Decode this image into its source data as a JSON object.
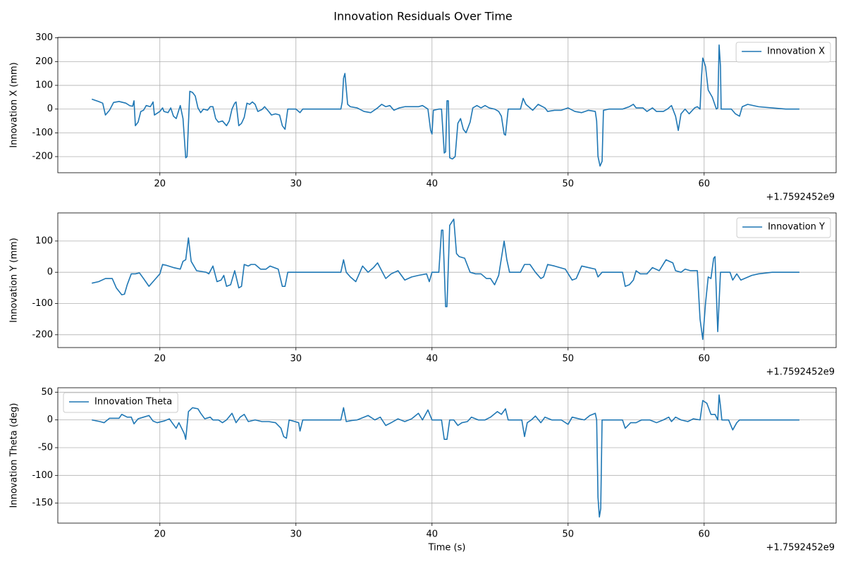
{
  "title": "Innovation Residuals Over Time",
  "chart_data": [
    {
      "type": "line",
      "ylabel": "Innovation X (mm)",
      "x_offset_label": "+1.7592452e9",
      "grid": true,
      "legend": "upper right",
      "xlim": [
        12.5,
        69.7
      ],
      "xticks": [
        20,
        30,
        40,
        50,
        60
      ],
      "ylim": [
        -268,
        302
      ],
      "yticks": [
        -200,
        -100,
        0,
        100,
        200,
        300
      ],
      "x": [
        15.0,
        15.5,
        15.8,
        16.0,
        16.3,
        16.6,
        17.0,
        17.5,
        17.8,
        18.0,
        18.1,
        18.2,
        18.4,
        18.6,
        18.8,
        19.0,
        19.3,
        19.5,
        19.6,
        20.0,
        20.2,
        20.3,
        20.6,
        20.8,
        21.0,
        21.2,
        21.5,
        21.7,
        21.9,
        22.0,
        22.2,
        22.4,
        22.6,
        22.8,
        23.0,
        23.2,
        23.5,
        23.7,
        23.9,
        24.1,
        24.3,
        24.6,
        24.9,
        25.1,
        25.3,
        25.5,
        25.6,
        25.8,
        26.0,
        26.2,
        26.4,
        26.6,
        26.8,
        27.0,
        27.2,
        27.5,
        27.7,
        28.0,
        28.2,
        28.5,
        28.8,
        29.0,
        29.2,
        29.4,
        29.7,
        30.0,
        30.3,
        30.5,
        31,
        32,
        33.3,
        33.4,
        33.5,
        33.6,
        33.8,
        34.0,
        34.5,
        35,
        35.5,
        36,
        36.3,
        36.6,
        36.9,
        37.2,
        37.6,
        38,
        38.5,
        39,
        39.3,
        39.7,
        39.9,
        40.0,
        40.1,
        40.5,
        40.7,
        40.9,
        41.0,
        41.1,
        41.2,
        41.3,
        41.5,
        41.7,
        41.9,
        42.1,
        42.3,
        42.5,
        42.8,
        43.0,
        43.3,
        43.6,
        43.9,
        44.2,
        44.6,
        44.9,
        45.1,
        45.3,
        45.4,
        45.6,
        46.2,
        46.5,
        46.7,
        46.9,
        47.1,
        47.4,
        47.8,
        48.3,
        48.5,
        49,
        49.5,
        50,
        50.5,
        51,
        51.5,
        52.0,
        52.1,
        52.2,
        52.35,
        52.5,
        52.6,
        53,
        54,
        54.5,
        54.8,
        55.0,
        55.5,
        55.8,
        56.2,
        56.5,
        57,
        57.3,
        57.6,
        57.9,
        58.1,
        58.3,
        58.6,
        58.9,
        59.3,
        59.5,
        59.7,
        59.8,
        59.9,
        60.1,
        60.3,
        60.6,
        60.9,
        61.0,
        61.1,
        61.2,
        61.25,
        61.5,
        62,
        62.3,
        62.6,
        62.8,
        63.2,
        64,
        65,
        66,
        67
      ],
      "series": [
        {
          "name": "Innovation X",
          "color": "#1f77b4",
          "values": [
            42,
            32,
            25,
            -25,
            -5,
            28,
            32,
            25,
            14,
            12,
            35,
            -70,
            -55,
            -10,
            -5,
            15,
            10,
            30,
            -25,
            -10,
            5,
            -10,
            -15,
            5,
            -30,
            -40,
            15,
            -40,
            -205,
            -200,
            75,
            70,
            55,
            5,
            -15,
            0,
            -5,
            10,
            10,
            -40,
            -55,
            -50,
            -70,
            -50,
            0,
            25,
            30,
            -70,
            -60,
            -35,
            25,
            20,
            30,
            20,
            -10,
            -2,
            10,
            -10,
            -25,
            -20,
            -25,
            -70,
            -85,
            0,
            0,
            0,
            -15,
            0,
            0,
            0,
            0,
            30,
            130,
            150,
            20,
            10,
            5,
            -10,
            -15,
            5,
            20,
            10,
            15,
            -5,
            5,
            10,
            10,
            10,
            15,
            0,
            -90,
            -105,
            -5,
            0,
            0,
            -185,
            -180,
            35,
            35,
            -205,
            -210,
            -200,
            -60,
            -40,
            -85,
            -100,
            -55,
            5,
            15,
            5,
            15,
            5,
            0,
            -10,
            -30,
            -105,
            -110,
            0,
            0,
            0,
            45,
            20,
            10,
            -5,
            20,
            5,
            -10,
            -5,
            -5,
            5,
            -10,
            -15,
            -5,
            -10,
            -50,
            -200,
            -240,
            -220,
            -5,
            0,
            0,
            10,
            20,
            5,
            5,
            -10,
            5,
            -10,
            -10,
            0,
            15,
            -30,
            -90,
            -20,
            0,
            -20,
            5,
            10,
            0,
            130,
            215,
            180,
            80,
            50,
            0,
            5,
            270,
            180,
            0,
            0,
            0,
            -20,
            -30,
            10,
            20,
            10,
            5,
            0,
            0
          ]
        }
      ]
    },
    {
      "type": "line",
      "ylabel": "Innovation Y (mm)",
      "x_offset_label": "+1.7592452e9",
      "grid": true,
      "legend": "upper right",
      "xlim": [
        12.5,
        69.7
      ],
      "xticks": [
        20,
        30,
        40,
        50,
        60
      ],
      "ylim": [
        -241,
        190
      ],
      "yticks": [
        -200,
        -100,
        0,
        100
      ],
      "x": [
        15.0,
        15.5,
        16.0,
        16.5,
        16.8,
        17.2,
        17.4,
        17.6,
        17.9,
        18.2,
        18.5,
        18.8,
        19.2,
        19.5,
        19.8,
        20.0,
        20.2,
        20.5,
        21.0,
        21.5,
        21.7,
        21.9,
        22.1,
        22.3,
        22.7,
        23.0,
        23.4,
        23.6,
        23.9,
        24.2,
        24.5,
        24.7,
        24.9,
        25.2,
        25.5,
        25.8,
        26.0,
        26.2,
        26.5,
        26.7,
        27.0,
        27.4,
        27.8,
        28.1,
        28.7,
        29.0,
        29.2,
        29.4,
        30.0,
        30.5,
        31,
        33.3,
        33.5,
        33.7,
        34.0,
        34.4,
        34.9,
        35.3,
        35.7,
        36.0,
        36.6,
        37.0,
        37.5,
        38.0,
        38.5,
        39.0,
        39.6,
        39.8,
        40.0,
        40.5,
        40.7,
        40.8,
        41.0,
        41.1,
        41.3,
        41.6,
        41.8,
        42.0,
        42.4,
        42.8,
        43.2,
        43.6,
        44.0,
        44.3,
        44.6,
        44.9,
        45.3,
        45.5,
        45.7,
        46.5,
        46.8,
        47.2,
        47.6,
        48.0,
        48.2,
        48.5,
        49.0,
        49.8,
        50.3,
        50.6,
        51.0,
        51.5,
        52.0,
        52.2,
        52.5,
        53,
        54.0,
        54.2,
        54.5,
        54.8,
        55.0,
        55.3,
        55.8,
        56.2,
        56.7,
        57.2,
        57.7,
        57.9,
        58.3,
        58.6,
        59.0,
        59.5,
        59.7,
        59.9,
        60.1,
        60.3,
        60.5,
        60.7,
        60.8,
        61.0,
        61.2,
        61.5,
        61.9,
        62.1,
        62.4,
        62.7,
        63.5,
        64,
        65,
        67
      ],
      "series": [
        {
          "name": "Innovation Y",
          "color": "#1f77b4",
          "values": [
            -35,
            -30,
            -20,
            -20,
            -50,
            -72,
            -70,
            -40,
            -5,
            -5,
            -2,
            -20,
            -45,
            -30,
            -15,
            -5,
            25,
            22,
            15,
            10,
            35,
            40,
            110,
            35,
            5,
            3,
            0,
            -5,
            20,
            -30,
            -25,
            -10,
            -45,
            -40,
            5,
            -50,
            -45,
            25,
            20,
            25,
            25,
            10,
            10,
            20,
            10,
            -45,
            -45,
            0,
            0,
            0,
            0,
            0,
            40,
            0,
            -15,
            -30,
            20,
            0,
            15,
            30,
            -20,
            -5,
            5,
            -25,
            -15,
            -10,
            -5,
            -30,
            0,
            0,
            135,
            135,
            -110,
            -110,
            150,
            170,
            60,
            50,
            45,
            0,
            -5,
            -5,
            -20,
            -20,
            -40,
            -10,
            100,
            40,
            0,
            0,
            25,
            25,
            0,
            -20,
            -15,
            25,
            20,
            10,
            -25,
            -20,
            20,
            15,
            10,
            -15,
            0,
            0,
            0,
            -45,
            -40,
            -25,
            5,
            -5,
            -5,
            15,
            5,
            40,
            30,
            5,
            0,
            10,
            5,
            5,
            -150,
            -215,
            -100,
            -15,
            -20,
            45,
            50,
            -190,
            0,
            0,
            0,
            -25,
            -5,
            -25,
            -10,
            -5,
            0,
            0
          ]
        }
      ]
    },
    {
      "type": "line",
      "ylabel": "Innovation Theta (deg)",
      "xlabel": "Time (s)",
      "x_offset_label": "+1.7592452e9",
      "grid": true,
      "legend": "upper left",
      "xlim": [
        12.5,
        69.7
      ],
      "xticks": [
        20,
        30,
        40,
        50,
        60
      ],
      "ylim": [
        -186,
        58
      ],
      "yticks": [
        -150,
        -100,
        -50,
        0,
        50
      ],
      "x": [
        15.0,
        15.6,
        15.9,
        16.3,
        17.0,
        17.2,
        17.6,
        17.9,
        18.1,
        18.4,
        18.8,
        19.2,
        19.5,
        19.8,
        20.3,
        20.7,
        20.9,
        21.2,
        21.4,
        21.8,
        21.9,
        22.1,
        22.4,
        22.8,
        23.0,
        23.3,
        23.7,
        23.9,
        24.3,
        24.6,
        24.9,
        25.3,
        25.6,
        25.9,
        26.2,
        26.5,
        27.0,
        27.5,
        28.0,
        28.5,
        28.9,
        29.1,
        29.3,
        29.5,
        30.2,
        30.3,
        30.5,
        31,
        33.3,
        33.5,
        33.7,
        34.1,
        34.5,
        35.0,
        35.3,
        35.8,
        36.2,
        36.6,
        37.0,
        37.5,
        38,
        38.5,
        39.0,
        39.3,
        39.7,
        40.0,
        40.7,
        40.9,
        41.1,
        41.3,
        41.6,
        41.9,
        42.2,
        42.6,
        42.9,
        43.4,
        43.9,
        44.3,
        44.8,
        45.1,
        45.4,
        45.6,
        46.6,
        46.8,
        47.0,
        47.3,
        47.6,
        48.0,
        48.3,
        48.8,
        49.5,
        50.0,
        50.3,
        50.8,
        51.2,
        51.6,
        52.0,
        52.1,
        52.2,
        52.3,
        52.4,
        52.5,
        53,
        54.0,
        54.2,
        54.6,
        55.0,
        55.4,
        56.0,
        56.5,
        57.0,
        57.4,
        57.6,
        57.9,
        58.3,
        58.8,
        59.2,
        59.7,
        59.9,
        60.2,
        60.5,
        60.8,
        61.0,
        61.1,
        61.2,
        61.3,
        61.8,
        62.1,
        62.4,
        62.6,
        63,
        64,
        67
      ],
      "series": [
        {
          "name": "Innovation Theta",
          "color": "#1f77b4",
          "values": [
            0,
            -3,
            -5,
            3,
            3,
            10,
            5,
            5,
            -7,
            2,
            5,
            8,
            -2,
            -5,
            -2,
            2,
            -5,
            -15,
            -5,
            -25,
            -35,
            15,
            22,
            20,
            12,
            2,
            5,
            0,
            0,
            -5,
            0,
            12,
            -5,
            5,
            10,
            -3,
            0,
            -3,
            -3,
            -5,
            -15,
            -30,
            -33,
            0,
            -5,
            -20,
            0,
            0,
            0,
            22,
            -3,
            -1,
            0,
            5,
            8,
            0,
            5,
            -10,
            -5,
            2,
            -3,
            2,
            12,
            0,
            18,
            0,
            0,
            -35,
            -35,
            0,
            0,
            -10,
            -5,
            -3,
            5,
            0,
            0,
            5,
            15,
            10,
            20,
            0,
            0,
            -30,
            -5,
            0,
            7,
            -5,
            5,
            0,
            0,
            -8,
            5,
            2,
            0,
            8,
            12,
            0,
            -140,
            -175,
            -160,
            0,
            0,
            0,
            -15,
            -5,
            -5,
            0,
            0,
            -5,
            0,
            5,
            -3,
            5,
            0,
            -3,
            2,
            0,
            35,
            30,
            10,
            10,
            0,
            45,
            25,
            0,
            0,
            -18,
            -5,
            0,
            0,
            0,
            0
          ]
        }
      ]
    }
  ]
}
